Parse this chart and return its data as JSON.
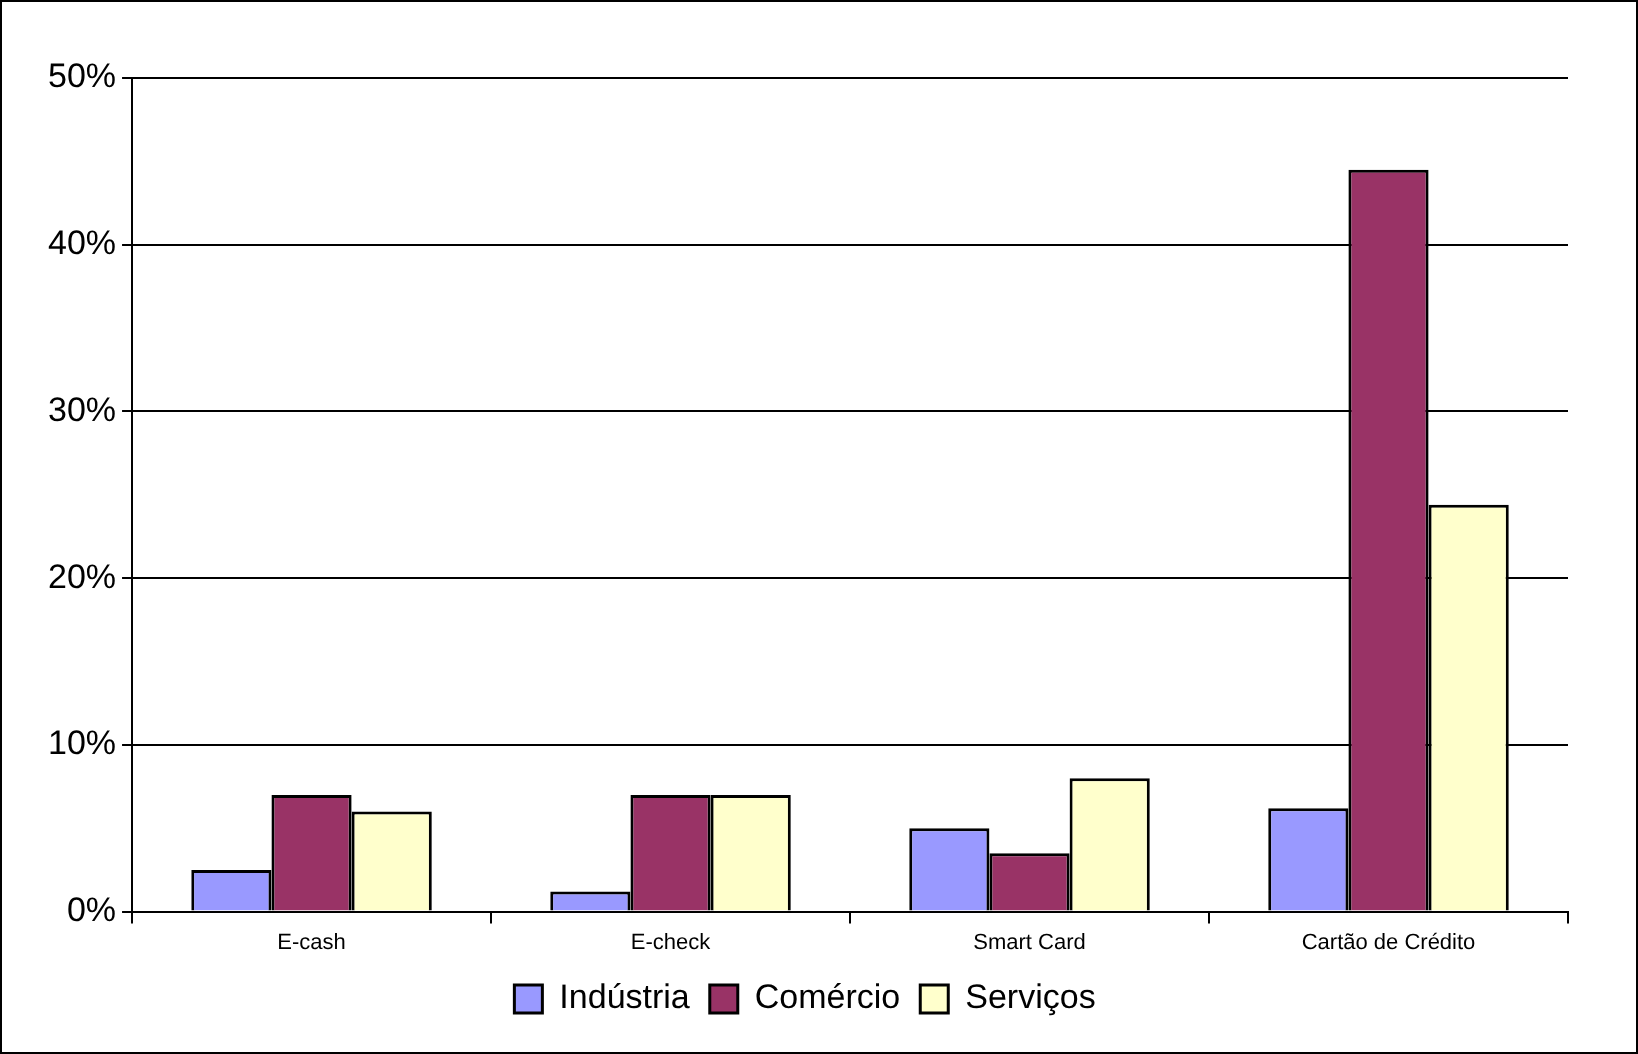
{
  "chart_data": {
    "type": "bar",
    "categories": [
      "E-cash",
      "E-check",
      "Smart Card",
      "Cartão de Crédito"
    ],
    "series": [
      {
        "name": "Indústria",
        "color": "#9999ff",
        "values": [
          2.5,
          1.2,
          5.0,
          6.2
        ]
      },
      {
        "name": "Comércio",
        "color": "#993366",
        "values": [
          7.0,
          7.0,
          3.5,
          44.5
        ]
      },
      {
        "name": "Serviços",
        "color": "#ffffcc",
        "values": [
          6.0,
          7.0,
          8.0,
          24.4
        ]
      }
    ],
    "ylim": [
      0,
      50
    ],
    "yticks": [
      {
        "value": 0,
        "label": "0%"
      },
      {
        "value": 10,
        "label": "10%"
      },
      {
        "value": 20,
        "label": "20%"
      },
      {
        "value": 30,
        "label": "30%"
      },
      {
        "value": 40,
        "label": "40%"
      },
      {
        "value": 50,
        "label": "50%"
      }
    ],
    "grid": "y",
    "legend": "bottom"
  }
}
